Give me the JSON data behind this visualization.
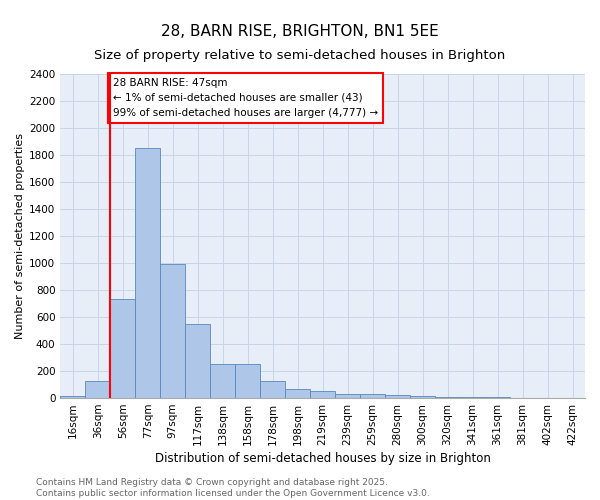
{
  "title": "28, BARN RISE, BRIGHTON, BN1 5EE",
  "subtitle": "Size of property relative to semi-detached houses in Brighton",
  "xlabel": "Distribution of semi-detached houses by size in Brighton",
  "ylabel": "Number of semi-detached properties",
  "bin_labels": [
    "16sqm",
    "36sqm",
    "56sqm",
    "77sqm",
    "97sqm",
    "117sqm",
    "138sqm",
    "158sqm",
    "178sqm",
    "198sqm",
    "219sqm",
    "239sqm",
    "259sqm",
    "280sqm",
    "300sqm",
    "320sqm",
    "341sqm",
    "361sqm",
    "381sqm",
    "402sqm",
    "422sqm"
  ],
  "bin_values": [
    15,
    130,
    730,
    1850,
    990,
    550,
    250,
    250,
    125,
    70,
    50,
    30,
    30,
    20,
    15,
    10,
    5,
    5,
    3,
    3,
    2
  ],
  "bar_color": "#aec6e8",
  "bar_edge_color": "#5588bb",
  "grid_color": "#c8d4e8",
  "background_color": "#e8eef8",
  "red_line_x": 1.5,
  "annotation_text": "28 BARN RISE: 47sqm\n← 1% of semi-detached houses are smaller (43)\n99% of semi-detached houses are larger (4,777) →",
  "ylim": [
    0,
    2400
  ],
  "yticks": [
    0,
    200,
    400,
    600,
    800,
    1000,
    1200,
    1400,
    1600,
    1800,
    2000,
    2200,
    2400
  ],
  "footnote": "Contains HM Land Registry data © Crown copyright and database right 2025.\nContains public sector information licensed under the Open Government Licence v3.0.",
  "title_fontsize": 11,
  "subtitle_fontsize": 9.5,
  "annotation_fontsize": 7.5,
  "footnote_fontsize": 6.5,
  "ylabel_fontsize": 8,
  "xlabel_fontsize": 8.5,
  "tick_fontsize": 7.5,
  "ytick_fontsize": 7.5
}
